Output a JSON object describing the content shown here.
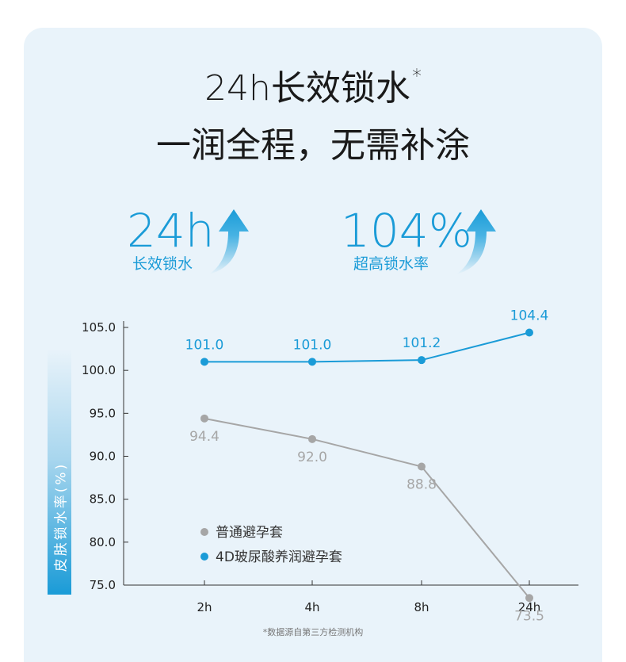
{
  "headline": {
    "line1": "24h长效锁水",
    "line1_mark": "*",
    "line2": "一润全程，无需补涂"
  },
  "stats": [
    {
      "value": "24h",
      "label": "长效锁水"
    },
    {
      "value": "104%",
      "label": "超高锁水率"
    }
  ],
  "colors": {
    "accent": "#1a9bd7",
    "gray_series": "#a6a6a6",
    "card_bg": "#e9f3fa"
  },
  "chart_data": {
    "type": "line",
    "ylabel": "皮肤锁水率(%)",
    "ylim": [
      75,
      105
    ],
    "yticks": [
      "105.0",
      "100.0",
      "95.0",
      "90.0",
      "85.0",
      "80.0",
      "75.0"
    ],
    "categories": [
      "2h",
      "4h",
      "8h",
      "24h"
    ],
    "series": [
      {
        "name": "4D玻尿酸养润避孕套",
        "color": "#1a9bd7",
        "values": [
          101.0,
          101.0,
          101.2,
          104.4
        ],
        "labels": [
          "101.0",
          "101.0",
          "101.2",
          "104.4"
        ]
      },
      {
        "name": "普通避孕套",
        "color": "#a6a6a6",
        "values": [
          94.4,
          92.0,
          88.8,
          73.5
        ],
        "labels": [
          "94.4",
          "92.0",
          "88.8",
          "73.5"
        ]
      }
    ],
    "legend": [
      "普通避孕套",
      "4D玻尿酸养润避孕套"
    ],
    "legend_position": "bottom-left",
    "grid": false
  },
  "footnote": "*数据源自第三方检测机构"
}
